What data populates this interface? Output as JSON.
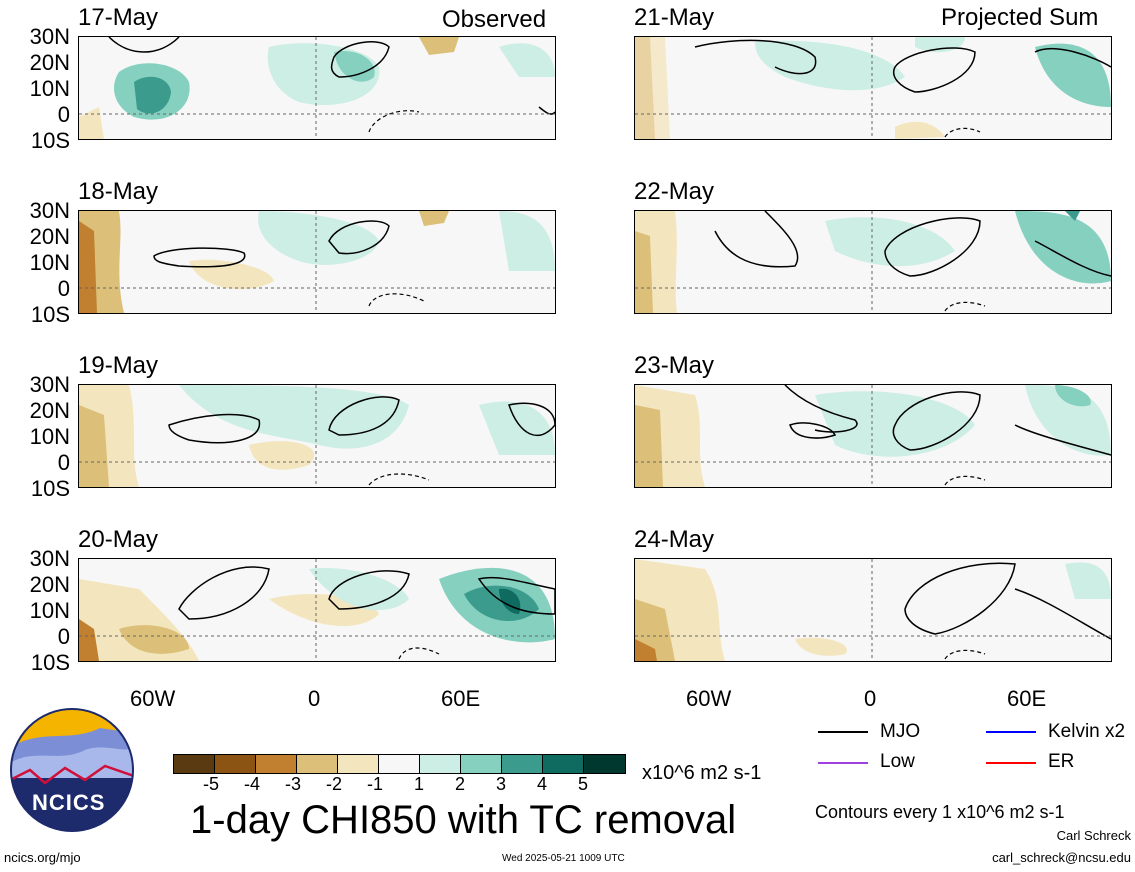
{
  "headers": {
    "left": "Observed",
    "right": "Projected Sum"
  },
  "dates": {
    "left": [
      "17-May",
      "18-May",
      "19-May",
      "20-May"
    ],
    "right": [
      "21-May",
      "22-May",
      "23-May",
      "24-May"
    ]
  },
  "lat_labels": [
    "30N",
    "20N",
    "10N",
    "0",
    "10S"
  ],
  "lon_labels": [
    "60W",
    "0",
    "60E"
  ],
  "legend": {
    "items": [
      {
        "label": "MJO",
        "color": "#000000"
      },
      {
        "label": "Kelvin x2",
        "color": "#0000ff"
      },
      {
        "label": "Low",
        "color": "#a040e0"
      },
      {
        "label": "ER",
        "color": "#ff0000"
      }
    ],
    "contour_note": "Contours every 1 x10^6 m2 s-1"
  },
  "colorbar": {
    "ticks": [
      "-5",
      "-4",
      "-3",
      "-2",
      "-1",
      "1",
      "2",
      "3",
      "4",
      "5"
    ],
    "colors": [
      "#5a3a10",
      "#8c5413",
      "#c08030",
      "#dcc07a",
      "#f3e6bf",
      "#f7f7f7",
      "#cdeee4",
      "#86d0c0",
      "#3b9c8d",
      "#0f6b5f",
      "#00382f"
    ],
    "units": "x10^6 m2 s-1"
  },
  "title": "1-day CHI850 with TC removal",
  "logo": {
    "text": "NCICS"
  },
  "footer": {
    "url": "ncics.org/mjo",
    "timestamp": "Wed 2025-05-21 1009 UTC",
    "author": "Carl Schreck",
    "email": "carl_schreck@ncsu.edu"
  }
}
